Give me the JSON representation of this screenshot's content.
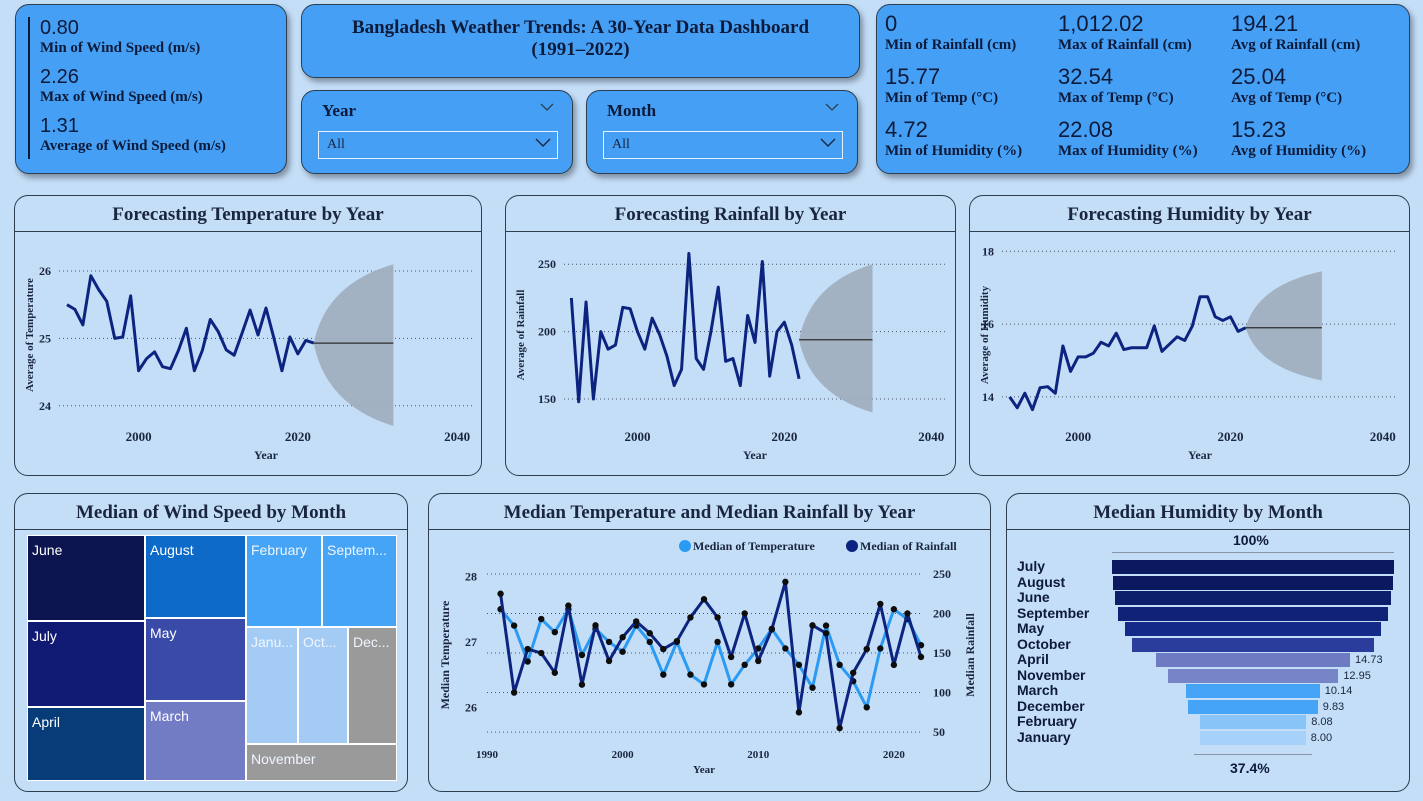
{
  "wind_kpis": [
    {
      "value": "0.80",
      "label": "Min of Wind Speed (m/s)"
    },
    {
      "value": "2.26",
      "label": "Max of Wind Speed (m/s)"
    },
    {
      "value": "1.31",
      "label": "Average of Wind Speed (m/s)"
    }
  ],
  "title": {
    "line1": "Bangladesh Weather Trends: A 30-Year Data Dashboard",
    "line2": "(1991–2022)"
  },
  "slicers": {
    "year": {
      "label": "Year",
      "value": "All"
    },
    "month": {
      "label": "Month",
      "value": "All"
    }
  },
  "stats": [
    {
      "value": "0",
      "label": "Min of Rainfall (cm)"
    },
    {
      "value": "1,012.02",
      "label": "Max of Rainfall (cm)"
    },
    {
      "value": "194.21",
      "label": "Avg of Rainfall (cm)"
    },
    {
      "value": "15.77",
      "label": "Min of Temp (°C)"
    },
    {
      "value": "32.54",
      "label": "Max of Temp (°C)"
    },
    {
      "value": "25.04",
      "label": "Avg of Temp (°C)"
    },
    {
      "value": "4.72",
      "label": "Min of Humidity (%)"
    },
    {
      "value": "22.08",
      "label": "Max of Humidity (%)"
    },
    {
      "value": "15.23",
      "label": "Avg of Humidity (%)"
    }
  ],
  "colors": {
    "dark_line": "#0c2480",
    "light_line": "#2a9af2",
    "forecast_band": "#9eadbd",
    "card_blue": "#45a0f5",
    "background": "#c4def8"
  },
  "chart_data": [
    {
      "type": "line",
      "title": "Forecasting Temperature by Year",
      "xlabel": "Year",
      "ylabel": "Average of Temperature",
      "xticks": [
        "2000",
        "2020",
        "2040"
      ],
      "yticks": [
        "24",
        "25",
        "26"
      ],
      "xlim": [
        1990,
        2042
      ],
      "ylim": [
        23.7,
        26.4
      ],
      "x": [
        1991,
        1992,
        1993,
        1994,
        1995,
        1996,
        1997,
        1998,
        1999,
        2000,
        2001,
        2002,
        2003,
        2004,
        2005,
        2006,
        2007,
        2008,
        2009,
        2010,
        2011,
        2012,
        2013,
        2014,
        2015,
        2016,
        2017,
        2018,
        2019,
        2020,
        2021,
        2022
      ],
      "values": [
        25.5,
        25.43,
        25.2,
        25.93,
        25.72,
        25.55,
        25.0,
        25.02,
        25.63,
        24.52,
        24.7,
        24.8,
        24.58,
        24.55,
        24.82,
        25.15,
        24.52,
        24.82,
        25.28,
        25.1,
        24.83,
        24.75,
        25.08,
        25.42,
        25.05,
        25.45,
        25.0,
        24.52,
        25.02,
        24.77,
        24.97,
        24.93
      ],
      "forecast": {
        "x": [
          2022,
          2032
        ],
        "value": 24.93,
        "lower_end": 23.7,
        "upper_end": 26.1
      }
    },
    {
      "type": "line",
      "title": "Forecasting Rainfall by Year",
      "xlabel": "Year",
      "ylabel": "Average of Rainfall",
      "xticks": [
        "2000",
        "2020",
        "2040"
      ],
      "yticks": [
        "150",
        "200",
        "250"
      ],
      "xlim": [
        1990,
        2042
      ],
      "ylim": [
        130,
        265
      ],
      "x": [
        1991,
        1992,
        1993,
        1994,
        1995,
        1996,
        1997,
        1998,
        1999,
        2000,
        2001,
        2002,
        2003,
        2004,
        2005,
        2006,
        2007,
        2008,
        2009,
        2010,
        2011,
        2012,
        2013,
        2014,
        2015,
        2016,
        2017,
        2018,
        2019,
        2020,
        2021,
        2022
      ],
      "values": [
        225,
        148,
        222,
        150,
        200,
        187,
        190,
        218,
        217,
        200,
        187,
        210,
        198,
        182,
        160,
        172,
        258,
        180,
        172,
        200,
        233,
        178,
        180,
        160,
        212,
        192,
        252,
        167,
        200,
        207,
        190,
        165
      ],
      "forecast": {
        "x": [
          2022,
          2032
        ],
        "value": 194,
        "lower_end": 140,
        "upper_end": 250
      }
    },
    {
      "type": "line",
      "title": "Forecasting Humidity by Year",
      "xlabel": "Year",
      "ylabel": "Average of Humidity",
      "xticks": [
        "2000",
        "2020",
        "2040"
      ],
      "yticks": [
        "14",
        "16",
        "18"
      ],
      "xlim": [
        1990,
        2042
      ],
      "ylim": [
        13.2,
        18.2
      ],
      "x": [
        1991,
        1992,
        1993,
        1994,
        1995,
        1996,
        1997,
        1998,
        1999,
        2000,
        2001,
        2002,
        2003,
        2004,
        2005,
        2006,
        2007,
        2008,
        2009,
        2010,
        2011,
        2012,
        2013,
        2014,
        2015,
        2016,
        2017,
        2018,
        2019,
        2020,
        2021,
        2022
      ],
      "values": [
        14.0,
        13.7,
        14.1,
        13.65,
        14.25,
        14.28,
        14.1,
        15.4,
        14.7,
        15.1,
        15.1,
        15.2,
        15.5,
        15.4,
        15.75,
        15.3,
        15.35,
        15.35,
        15.35,
        15.95,
        15.25,
        15.45,
        15.65,
        15.55,
        15.95,
        16.75,
        16.75,
        16.2,
        16.1,
        16.2,
        15.8,
        15.9
      ],
      "forecast": {
        "x": [
          2022,
          2032
        ],
        "value": 15.9,
        "lower_end": 14.45,
        "upper_end": 17.45
      }
    },
    {
      "type": "treemap",
      "title": "Median of Wind Speed by Month",
      "cells": [
        {
          "label": "June",
          "color": "#0c1550"
        },
        {
          "label": "July",
          "color": "#101a72"
        },
        {
          "label": "April",
          "color": "#083c78"
        },
        {
          "label": "August",
          "color": "#0e6ac8"
        },
        {
          "label": "May",
          "color": "#3a4aa8"
        },
        {
          "label": "March",
          "color": "#727cc4"
        },
        {
          "label": "February",
          "color": "#46a4f6"
        },
        {
          "label": "Septem...",
          "color": "#46a4f6"
        },
        {
          "label": "Janu...",
          "color": "#a3cbf4"
        },
        {
          "label": "Oct...",
          "color": "#a3cbf4"
        },
        {
          "label": "Dec...",
          "color": "#9a9a9a"
        },
        {
          "label": "November",
          "color": "#9a9a9a"
        }
      ]
    },
    {
      "type": "line",
      "title": "Median Temperature and Median Rainfall by Year",
      "xlabel": "Year",
      "ylabel": "Median Temperature",
      "ylabel_right": "Median Rainfall",
      "xticks": [
        "1990",
        "2000",
        "2010",
        "2020"
      ],
      "yticks_left": [
        "26",
        "27",
        "28"
      ],
      "yticks_right": [
        "50",
        "100",
        "150",
        "200",
        "250"
      ],
      "xlim": [
        1990,
        2022
      ],
      "ylim_left": [
        25.5,
        28.1
      ],
      "ylim_right": [
        40,
        255
      ],
      "x": [
        1991,
        1992,
        1993,
        1994,
        1995,
        1996,
        1997,
        1998,
        1999,
        2000,
        2001,
        2002,
        2003,
        2004,
        2005,
        2006,
        2007,
        2008,
        2009,
        2010,
        2011,
        2012,
        2013,
        2014,
        2015,
        2016,
        2017,
        2018,
        2019,
        2020,
        2021,
        2022
      ],
      "series": [
        {
          "name": "Median of Temperature",
          "axis": "left",
          "values": [
            27.5,
            27.25,
            26.7,
            27.35,
            27.15,
            27.5,
            26.8,
            27.2,
            27.0,
            26.85,
            27.25,
            27.0,
            26.5,
            27.0,
            26.5,
            26.35,
            27.0,
            26.35,
            26.65,
            26.9,
            27.2,
            26.9,
            26.65,
            26.3,
            27.25,
            26.65,
            26.4,
            26.0,
            26.9,
            27.5,
            27.35,
            26.95
          ],
          "color": "#2a9af2"
        },
        {
          "name": "Median of Rainfall",
          "axis": "right",
          "values": [
            225,
            100,
            155,
            150,
            125,
            210,
            110,
            185,
            140,
            170,
            190,
            175,
            155,
            165,
            195,
            218,
            195,
            145,
            200,
            140,
            180,
            240,
            75,
            185,
            175,
            55,
            125,
            155,
            212,
            135,
            200,
            145
          ],
          "color": "#0c2480"
        }
      ],
      "legend_position": "top-right"
    },
    {
      "type": "funnel",
      "title": "Median Humidity by Month",
      "top_label": "100%",
      "bottom_label": "37.4%",
      "categories": [
        "July",
        "August",
        "June",
        "September",
        "May",
        "October",
        "April",
        "November",
        "March",
        "December",
        "February",
        "January"
      ],
      "values": [
        21.4,
        21.2,
        20.9,
        20.5,
        19.4,
        18.4,
        14.73,
        12.95,
        10.14,
        9.83,
        8.08,
        8.0
      ],
      "value_labels": [
        "",
        "",
        "",
        "",
        "",
        "",
        "14.73",
        "12.95",
        "10.14",
        "9.83",
        "8.08",
        "8.00"
      ],
      "colors": [
        "#0b1a5e",
        "#0b1a5e",
        "#0d1e6a",
        "#0f2278",
        "#142a88",
        "#2a3c9c",
        "#6e7ac2",
        "#7884c8",
        "#46a4f6",
        "#46a4f6",
        "#88c4f8",
        "#a6d2fa"
      ]
    }
  ]
}
